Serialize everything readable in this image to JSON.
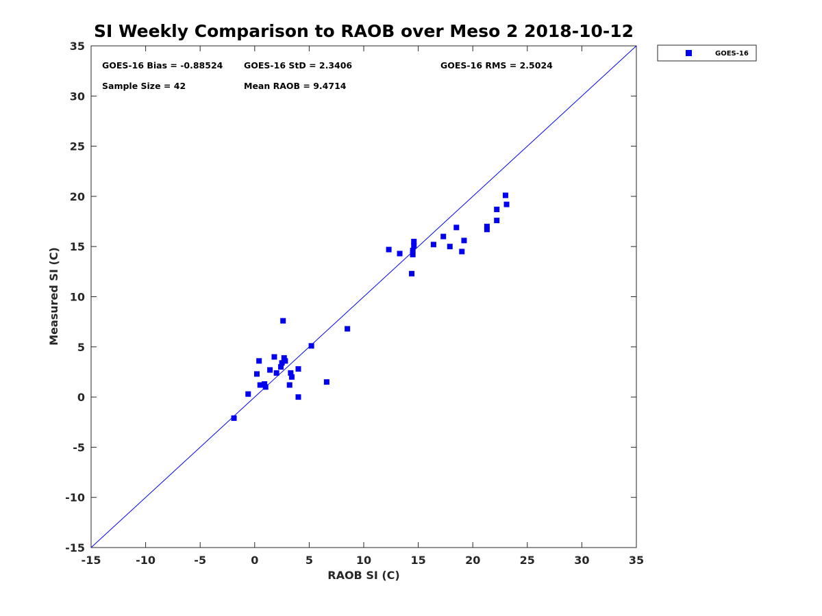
{
  "chart_data": {
    "type": "scatter",
    "title": "SI Weekly Comparison to RAOB over Meso 2 2018-10-12",
    "xlabel": "RAOB SI (C)",
    "ylabel": "Measured SI (C)",
    "xlim": [
      -15,
      35
    ],
    "ylim": [
      -15,
      35
    ],
    "xticks": [
      -15,
      -10,
      -5,
      0,
      5,
      10,
      15,
      20,
      25,
      30,
      35
    ],
    "yticks": [
      -15,
      -10,
      -5,
      0,
      5,
      10,
      15,
      20,
      25,
      30,
      35
    ],
    "xtick_labels": [
      "-15",
      "-10",
      "-5",
      "0",
      "5",
      "10",
      "15",
      "20",
      "25",
      "30",
      "35"
    ],
    "ytick_labels": [
      "-15",
      "-10",
      "-5",
      "0",
      "5",
      "10",
      "15",
      "20",
      "25",
      "30",
      "35"
    ],
    "grid": false,
    "reference_line": {
      "type": "one-to-one",
      "from": [
        -15,
        -15
      ],
      "to": [
        35,
        35
      ],
      "color": "#0000ee"
    },
    "legend": {
      "position": "outside-top-right",
      "entries": [
        "GOES-16"
      ]
    },
    "stats": {
      "bias": "GOES-16 Bias = -0.88524",
      "std": "GOES-16 StD = 2.3406",
      "rms": "GOES-16 RMS = 2.5024",
      "sample_size": "Sample Size = 42",
      "mean_raob": "Mean RAOB = 9.4714"
    },
    "series": [
      {
        "name": "GOES-16",
        "color": "#0000ee",
        "marker": "square",
        "x": [
          -1.9,
          -0.6,
          0.2,
          0.4,
          0.5,
          0.9,
          1.0,
          1.4,
          1.8,
          2.0,
          2.4,
          2.5,
          2.6,
          2.7,
          2.8,
          3.2,
          3.3,
          3.4,
          4.0,
          4.0,
          5.2,
          6.6,
          8.5,
          12.3,
          13.3,
          14.4,
          14.5,
          14.5,
          14.6,
          14.6,
          16.4,
          17.3,
          17.9,
          18.5,
          19.0,
          19.2,
          21.3,
          21.3,
          22.2,
          22.2,
          23.0,
          23.1
        ],
        "y": [
          -2.1,
          0.3,
          2.3,
          3.6,
          1.2,
          1.3,
          1.0,
          2.7,
          4.0,
          2.4,
          3.0,
          3.4,
          7.6,
          3.9,
          3.6,
          1.2,
          2.4,
          2.0,
          0.0,
          2.8,
          5.1,
          1.5,
          6.8,
          14.7,
          14.3,
          12.3,
          14.2,
          14.6,
          15.1,
          15.5,
          15.2,
          16.0,
          15.0,
          16.9,
          14.5,
          15.6,
          16.7,
          17.0,
          18.7,
          17.6,
          20.1,
          19.2
        ]
      }
    ]
  }
}
